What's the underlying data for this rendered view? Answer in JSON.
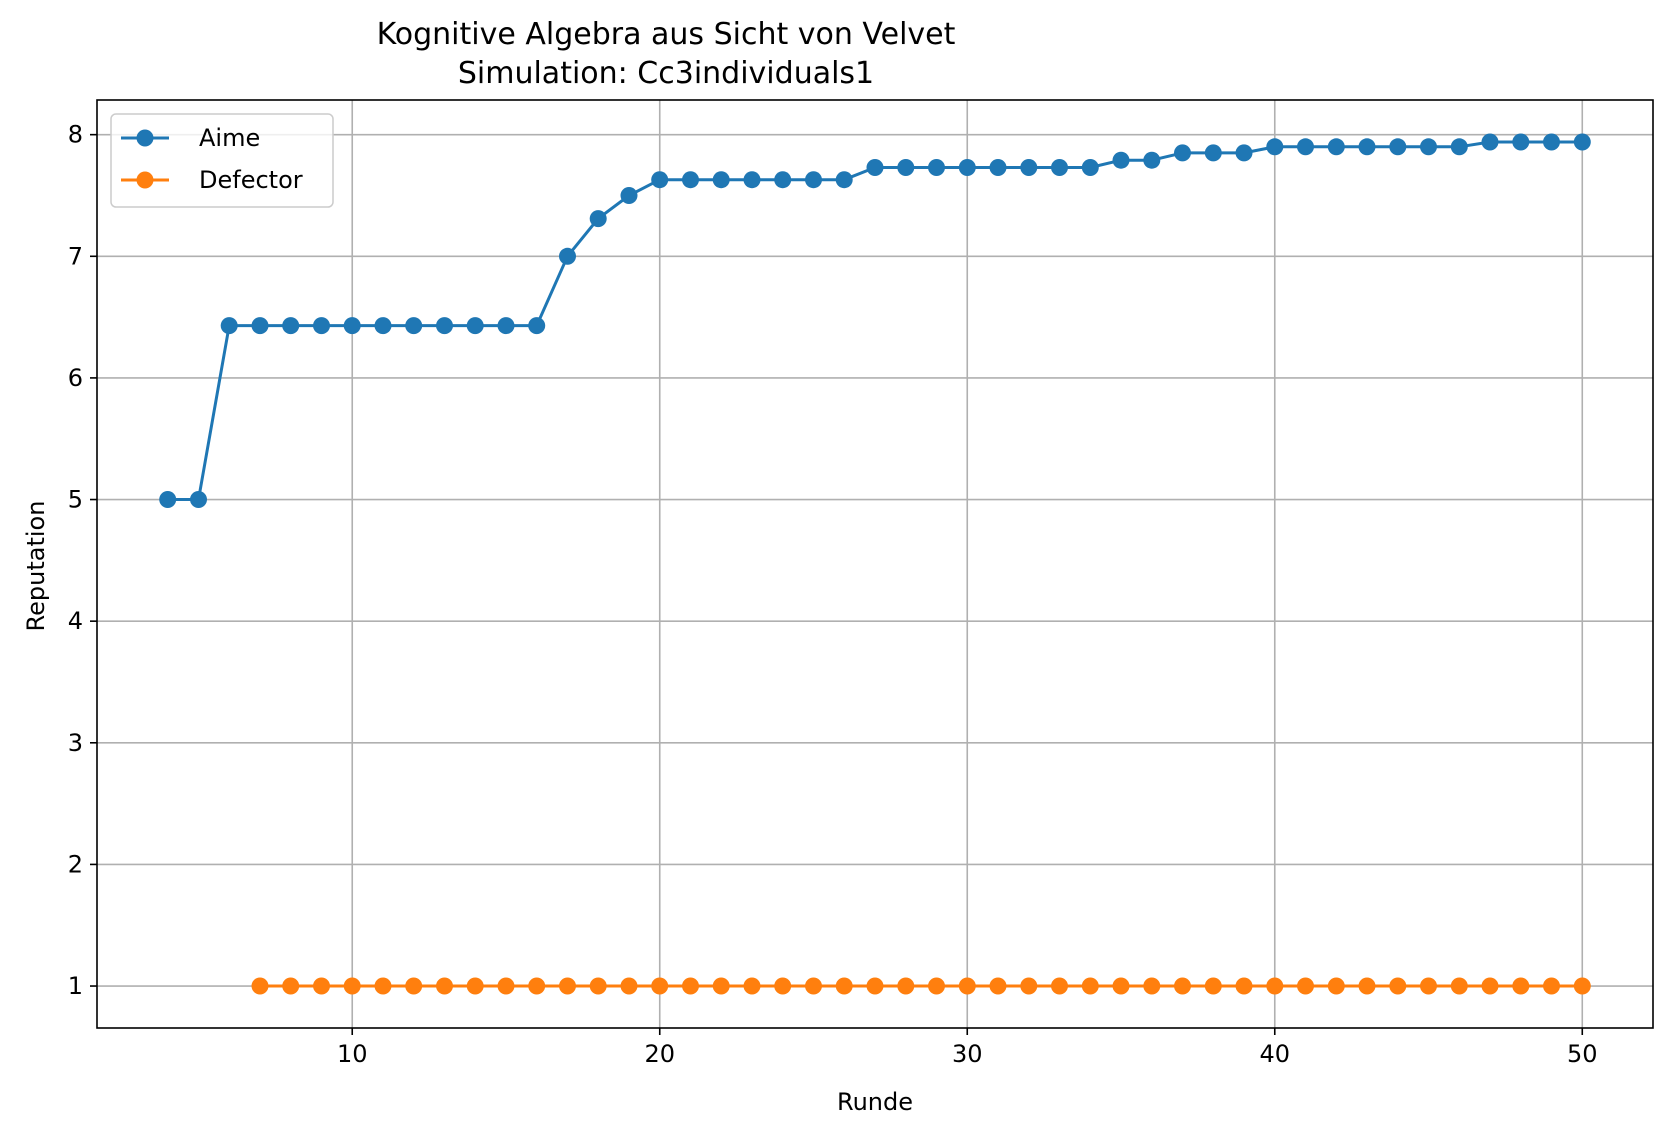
{
  "chart_data": {
    "type": "line",
    "title": "Kognitive Algebra aus Sicht von Velvet",
    "subtitle": "Simulation: Cc3individuals1",
    "xlabel": "Runde",
    "ylabel": "Reputation",
    "xlim": [
      1.7,
      52.3
    ],
    "ylim": [
      0.655,
      8.285
    ],
    "xticks": [
      10,
      20,
      30,
      40,
      50
    ],
    "yticks": [
      1,
      2,
      3,
      4,
      5,
      6,
      7,
      8
    ],
    "grid": true,
    "legend_position": "upper left",
    "series": [
      {
        "name": "Aime",
        "color": "#1f77b4",
        "marker": "circle",
        "x": [
          4,
          5,
          6,
          7,
          8,
          9,
          10,
          11,
          12,
          13,
          14,
          15,
          16,
          17,
          18,
          19,
          20,
          21,
          22,
          23,
          24,
          25,
          26,
          27,
          28,
          29,
          30,
          31,
          32,
          33,
          34,
          35,
          36,
          37,
          38,
          39,
          40,
          41,
          42,
          43,
          44,
          45,
          46,
          47,
          48,
          49,
          50
        ],
        "y": [
          5.0,
          5.0,
          6.43,
          6.43,
          6.43,
          6.43,
          6.43,
          6.43,
          6.43,
          6.43,
          6.43,
          6.43,
          6.43,
          7.0,
          7.31,
          7.5,
          7.63,
          7.63,
          7.63,
          7.63,
          7.63,
          7.63,
          7.63,
          7.73,
          7.73,
          7.73,
          7.73,
          7.73,
          7.73,
          7.73,
          7.73,
          7.79,
          7.79,
          7.85,
          7.85,
          7.85,
          7.9,
          7.9,
          7.9,
          7.9,
          7.9,
          7.9,
          7.9,
          7.94,
          7.94,
          7.94,
          7.94
        ]
      },
      {
        "name": "Defector",
        "color": "#ff7f0e",
        "marker": "circle",
        "x": [
          7,
          8,
          9,
          10,
          11,
          12,
          13,
          14,
          15,
          16,
          17,
          18,
          19,
          20,
          21,
          22,
          23,
          24,
          25,
          26,
          27,
          28,
          29,
          30,
          31,
          32,
          33,
          34,
          35,
          36,
          37,
          38,
          39,
          40,
          41,
          42,
          43,
          44,
          45,
          46,
          47,
          48,
          49,
          50
        ],
        "y": [
          1,
          1,
          1,
          1,
          1,
          1,
          1,
          1,
          1,
          1,
          1,
          1,
          1,
          1,
          1,
          1,
          1,
          1,
          1,
          1,
          1,
          1,
          1,
          1,
          1,
          1,
          1,
          1,
          1,
          1,
          1,
          1,
          1,
          1,
          1,
          1,
          1,
          1,
          1,
          1,
          1,
          1,
          1,
          1
        ]
      }
    ]
  }
}
